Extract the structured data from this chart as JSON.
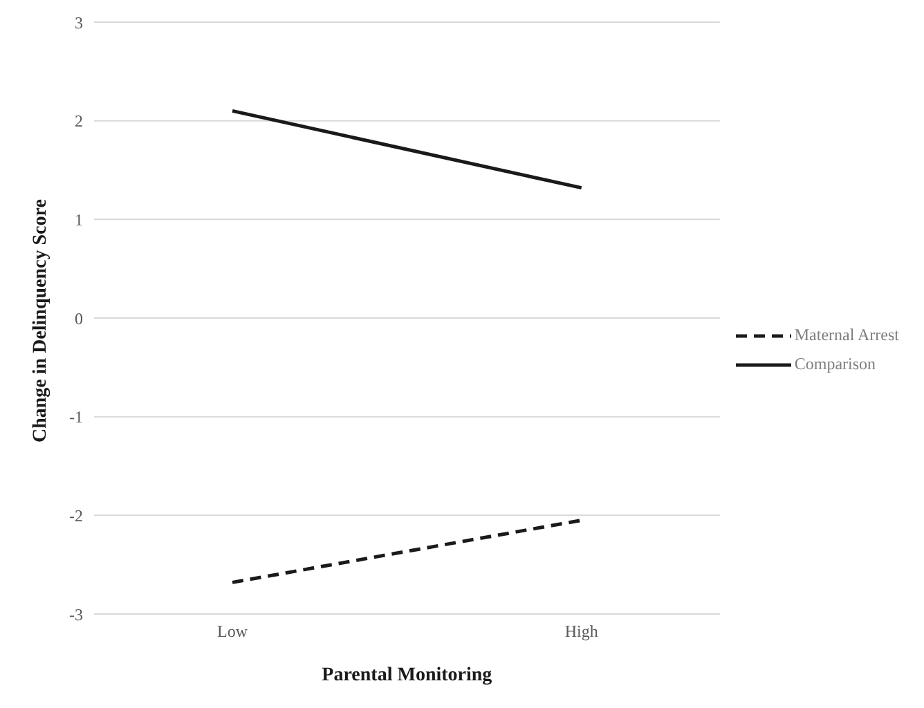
{
  "chart_data": {
    "type": "line",
    "xlabel": "Parental Monitoring",
    "ylabel": "Change in Delinquency Score",
    "categories": [
      "Low",
      "High"
    ],
    "series": [
      {
        "name": "Maternal Arrest",
        "color": "#1a1a1a",
        "values": [
          -2.68,
          -2.05
        ],
        "line_style": "dashed"
      },
      {
        "name": "Comparison",
        "color": "#1a1a1a",
        "values": [
          2.1,
          1.32
        ],
        "line_style": "solid"
      }
    ],
    "ylim": [
      -3,
      3
    ],
    "yticks": [
      -3,
      -2,
      -1,
      0,
      1,
      2,
      3
    ],
    "grid": "y",
    "legend": "right",
    "marker": "none"
  }
}
